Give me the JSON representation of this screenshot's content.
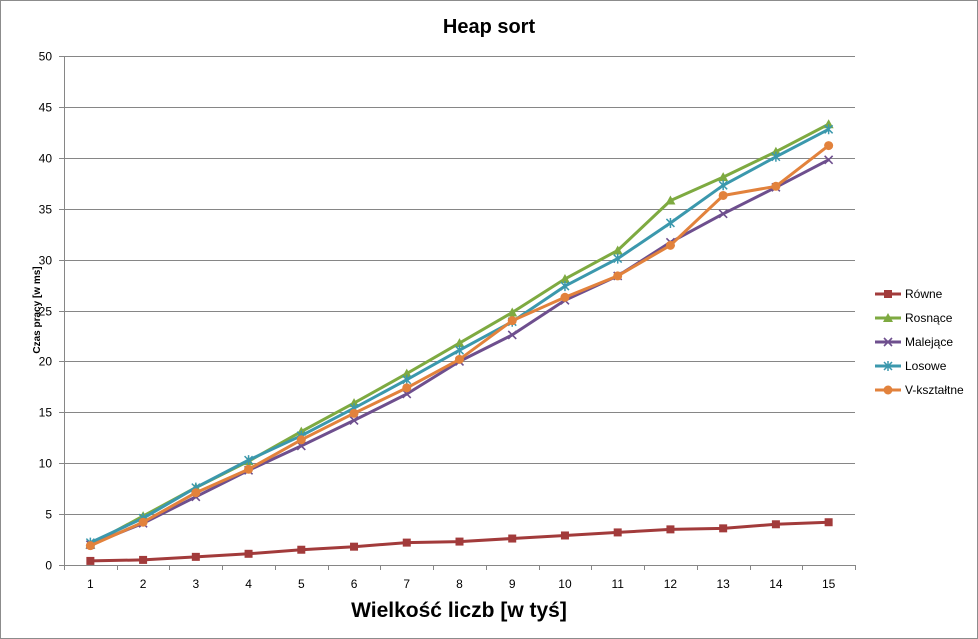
{
  "chart_data": {
    "type": "line",
    "title": "Heap sort",
    "xlabel": "Wielkość liczb [w tyś]",
    "ylabel": "Czas pracy [w ms]",
    "x": [
      1,
      2,
      3,
      4,
      5,
      6,
      7,
      8,
      9,
      10,
      11,
      12,
      13,
      14,
      15
    ],
    "ylim": [
      0,
      50
    ],
    "yticks": [
      0,
      5,
      10,
      15,
      20,
      25,
      30,
      35,
      40,
      45,
      50
    ],
    "grid": "horizontal",
    "legend_position": "right",
    "series": [
      {
        "name": "Równe",
        "color": "#a23b3b",
        "marker": "square",
        "values": [
          0.4,
          0.5,
          0.8,
          1.1,
          1.5,
          1.8,
          2.2,
          2.3,
          2.6,
          2.9,
          3.2,
          3.5,
          3.6,
          4.0,
          4.2
        ]
      },
      {
        "name": "Rosnące",
        "color": "#7eaa41",
        "marker": "triangle",
        "values": [
          2.0,
          4.8,
          7.6,
          10.2,
          13.1,
          15.9,
          18.8,
          21.8,
          24.8,
          28.1,
          30.9,
          35.8,
          38.1,
          40.6,
          43.3
        ]
      },
      {
        "name": "Malejące",
        "color": "#6e4f8e",
        "marker": "x",
        "values": [
          2.0,
          4.1,
          6.7,
          9.3,
          11.7,
          14.2,
          16.8,
          20.0,
          22.6,
          26.0,
          28.4,
          31.7,
          34.5,
          37.1,
          39.8
        ]
      },
      {
        "name": "Losowe",
        "color": "#3b98ad",
        "marker": "star",
        "values": [
          2.2,
          4.6,
          7.6,
          10.3,
          12.7,
          15.4,
          18.2,
          21.1,
          23.9,
          27.4,
          30.1,
          33.6,
          37.3,
          40.1,
          42.8
        ]
      },
      {
        "name": "V-kształtne",
        "color": "#e2823c",
        "marker": "circle",
        "values": [
          1.9,
          4.2,
          7.1,
          9.4,
          12.3,
          14.9,
          17.4,
          20.2,
          24.0,
          26.3,
          28.4,
          31.4,
          36.3,
          37.2,
          41.2
        ]
      }
    ]
  }
}
